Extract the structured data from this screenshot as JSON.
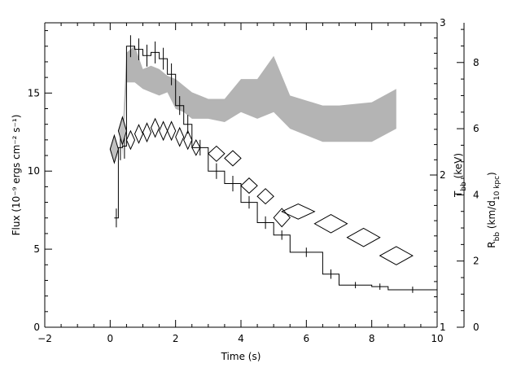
{
  "chart_data": {
    "type": "line",
    "title": "",
    "xlabel": "Time (s)",
    "ylabel_left": "Flux (10⁻⁹ ergs cm⁻² s⁻¹)",
    "ylabel_right_inner": "T_bb (keV)",
    "ylabel_right_outer": "R_bb (km/d_10 kpc)",
    "xlim": [
      -2,
      10
    ],
    "ylim_left": [
      0,
      19.5
    ],
    "ylim_right_inner": [
      1,
      3
    ],
    "ylim_right_outer": [
      0,
      9.2
    ],
    "grid": false,
    "xticks": [
      "−2",
      "0",
      "2",
      "4",
      "6",
      "8",
      "10"
    ],
    "yticks_left": [
      "0",
      "5",
      "10",
      "15"
    ],
    "yticks_right_inner": [
      "1",
      "2",
      "3"
    ],
    "yticks_right_outer": [
      "0",
      "2",
      "4",
      "6",
      "8"
    ],
    "series": [
      {
        "style": "histogram",
        "color": "#000000",
        "points": [
          {
            "x0": 0.125,
            "x1": 0.25,
            "y": 7.0,
            "err": 0.6
          },
          {
            "x0": 0.25,
            "x1": 0.375,
            "y": 11.5,
            "err": 0.8
          },
          {
            "x0": 0.375,
            "x1": 0.5,
            "y": 11.6,
            "err": 0.8
          },
          {
            "x0": 0.5,
            "x1": 0.75,
            "y": 18.0,
            "err": 0.7
          },
          {
            "x0": 0.75,
            "x1": 1.0,
            "y": 17.8,
            "err": 0.7
          },
          {
            "x0": 1.0,
            "x1": 1.25,
            "y": 17.4,
            "err": 0.7
          },
          {
            "x0": 1.25,
            "x1": 1.5,
            "y": 17.6,
            "err": 0.7
          },
          {
            "x0": 1.5,
            "x1": 1.75,
            "y": 17.2,
            "err": 0.7
          },
          {
            "x0": 1.75,
            "x1": 2.0,
            "y": 16.2,
            "err": 0.7
          },
          {
            "x0": 2.0,
            "x1": 2.25,
            "y": 14.2,
            "err": 0.6
          },
          {
            "x0": 2.25,
            "x1": 2.5,
            "y": 13.0,
            "err": 0.6
          },
          {
            "x0": 2.5,
            "x1": 3.0,
            "y": 11.5,
            "err": 0.5
          },
          {
            "x0": 3.0,
            "x1": 3.5,
            "y": 10.0,
            "err": 0.5
          },
          {
            "x0": 3.5,
            "x1": 4.0,
            "y": 9.2,
            "err": 0.5
          },
          {
            "x0": 4.0,
            "x1": 4.5,
            "y": 8.0,
            "err": 0.4
          },
          {
            "x0": 4.5,
            "x1": 5.0,
            "y": 6.7,
            "err": 0.4
          },
          {
            "x0": 5.0,
            "x1": 5.5,
            "y": 5.9,
            "err": 0.3
          },
          {
            "x0": 5.5,
            "x1": 6.5,
            "y": 4.8,
            "err": 0.3
          },
          {
            "x0": 6.5,
            "x1": 7.0,
            "y": 3.4,
            "err": 0.3
          },
          {
            "x0": 7.0,
            "x1": 8.0,
            "y": 2.7,
            "err": 0.2
          },
          {
            "x0": 8.0,
            "x1": 8.5,
            "y": 2.6,
            "err": 0.2
          },
          {
            "x0": 8.5,
            "x1": 10.0,
            "y": 2.4,
            "err": 0.2
          }
        ]
      },
      {
        "style": "diamonds",
        "axis": "right_inner",
        "color": "#000000",
        "points": [
          {
            "x": 0.125,
            "y": 2.17,
            "dx": 0.125,
            "dy": 0.09,
            "fill": "#c0c0c0"
          },
          {
            "x": 0.375,
            "y": 2.29,
            "dx": 0.125,
            "dy": 0.09,
            "fill": "#c0c0c0"
          },
          {
            "x": 0.625,
            "y": 2.23,
            "dx": 0.125,
            "dy": 0.06,
            "fill": "none"
          },
          {
            "x": 0.875,
            "y": 2.27,
            "dx": 0.125,
            "dy": 0.06,
            "fill": "none"
          },
          {
            "x": 1.125,
            "y": 2.28,
            "dx": 0.125,
            "dy": 0.06,
            "fill": "none"
          },
          {
            "x": 1.375,
            "y": 2.31,
            "dx": 0.125,
            "dy": 0.06,
            "fill": "none"
          },
          {
            "x": 1.625,
            "y": 2.29,
            "dx": 0.125,
            "dy": 0.06,
            "fill": "none"
          },
          {
            "x": 1.875,
            "y": 2.29,
            "dx": 0.125,
            "dy": 0.06,
            "fill": "none"
          },
          {
            "x": 2.125,
            "y": 2.25,
            "dx": 0.125,
            "dy": 0.06,
            "fill": "none"
          },
          {
            "x": 2.375,
            "y": 2.23,
            "dx": 0.125,
            "dy": 0.06,
            "fill": "none"
          },
          {
            "x": 2.625,
            "y": 2.18,
            "dx": 0.125,
            "dy": 0.05,
            "fill": "none"
          },
          {
            "x": 3.25,
            "y": 2.14,
            "dx": 0.25,
            "dy": 0.05,
            "fill": "none"
          },
          {
            "x": 3.75,
            "y": 2.11,
            "dx": 0.25,
            "dy": 0.05,
            "fill": "none"
          },
          {
            "x": 4.25,
            "y": 1.93,
            "dx": 0.25,
            "dy": 0.05,
            "fill": "none"
          },
          {
            "x": 4.75,
            "y": 1.86,
            "dx": 0.25,
            "dy": 0.05,
            "fill": "none"
          },
          {
            "x": 5.25,
            "y": 1.72,
            "dx": 0.25,
            "dy": 0.06,
            "fill": "none"
          },
          {
            "x": 5.75,
            "y": 1.76,
            "dx": 0.5,
            "dy": 0.05,
            "fill": "none"
          },
          {
            "x": 6.75,
            "y": 1.68,
            "dx": 0.5,
            "dy": 0.06,
            "fill": "none"
          },
          {
            "x": 7.75,
            "y": 1.59,
            "dx": 0.5,
            "dy": 0.06,
            "fill": "none"
          },
          {
            "x": 8.75,
            "y": 1.47,
            "dx": 0.5,
            "dy": 0.06,
            "fill": "none"
          }
        ]
      },
      {
        "style": "band",
        "axis": "right_outer",
        "color": "#b4b4b4",
        "x": [
          0.375,
          0.5,
          0.75,
          1.0,
          1.25,
          1.5,
          1.75,
          2.0,
          2.25,
          2.5,
          3.0,
          3.5,
          4.0,
          4.5,
          5.0,
          5.5,
          6.5,
          7.0,
          8.0,
          8.75
        ],
        "upper": [
          5.8,
          8.3,
          8.5,
          7.8,
          7.9,
          7.8,
          7.6,
          7.5,
          7.3,
          7.1,
          6.9,
          6.9,
          7.5,
          7.5,
          8.2,
          7.0,
          6.7,
          6.7,
          6.8,
          7.2
        ],
        "lower": [
          5.1,
          7.4,
          7.4,
          7.2,
          7.1,
          7.0,
          7.1,
          6.6,
          6.5,
          6.3,
          6.3,
          6.2,
          6.5,
          6.3,
          6.5,
          6.0,
          5.6,
          5.6,
          5.6,
          6.0
        ]
      }
    ]
  }
}
